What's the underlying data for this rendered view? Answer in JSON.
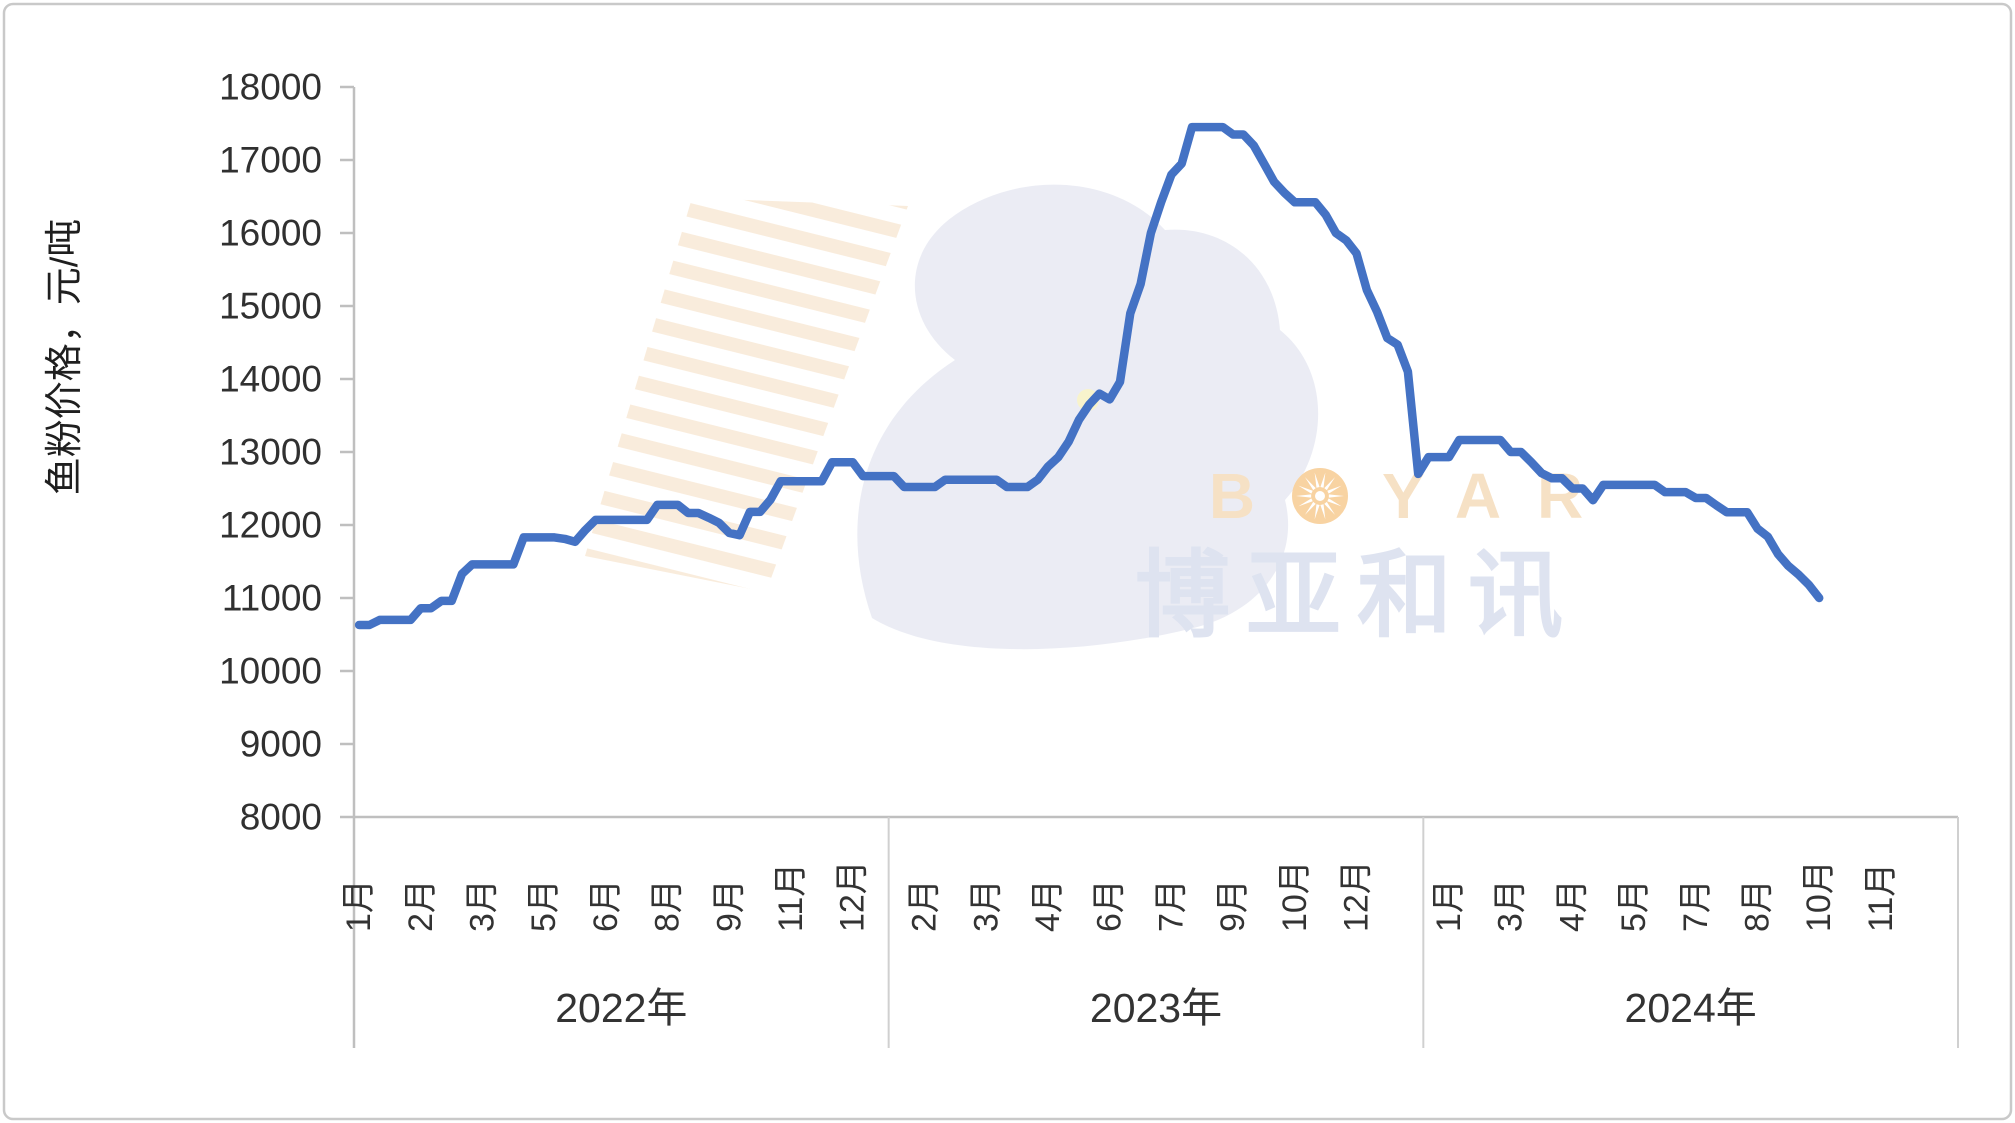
{
  "watermark": {
    "brand": "BOYAR",
    "brand_zh": "博亚和讯",
    "brand_color": "#f2cfa3",
    "brand_zh_color": "#cbd2e7",
    "stripe_color": "#f0cda1",
    "bird_color": "#c9cfe3",
    "eye_color": "#f5edae"
  },
  "chart_data": {
    "type": "line",
    "title": "",
    "ylabel": "鱼粉价格，元/吨",
    "xlabel": "",
    "ylim": [
      8000,
      18000
    ],
    "y_tick_step": 1000,
    "y_tick_labels": [
      "18000",
      "17000",
      "16000",
      "15000",
      "14000",
      "13000",
      "12000",
      "11000",
      "10000",
      "9000",
      "8000"
    ],
    "grid": "off",
    "legend": "none",
    "line_color": "#4472C4",
    "axis_color": "#bfbfbf",
    "text_color": "#303030",
    "years": [
      {
        "label": "2022年",
        "slots": 52,
        "month_ticks": [
          {
            "label": "1月",
            "week": 1
          },
          {
            "label": "2月",
            "week": 7
          },
          {
            "label": "3月",
            "week": 13
          },
          {
            "label": "5月",
            "week": 19
          },
          {
            "label": "6月",
            "week": 25
          },
          {
            "label": "8月",
            "week": 31
          },
          {
            "label": "9月",
            "week": 37
          },
          {
            "label": "11月",
            "week": 43
          },
          {
            "label": "12月",
            "week": 49
          }
        ],
        "values": [
          10630,
          10630,
          10700,
          10700,
          10700,
          10700,
          10860,
          10860,
          10960,
          10960,
          11330,
          11460,
          11460,
          11460,
          11460,
          11460,
          11830,
          11830,
          11830,
          11830,
          11810,
          11770,
          11930,
          12070,
          12070,
          12070,
          12070,
          12070,
          12070,
          12275,
          12275,
          12275,
          12165,
          12165,
          12100,
          12030,
          11890,
          11860,
          12180,
          12180,
          12345,
          12600,
          12600,
          12600,
          12600,
          12600,
          12860,
          12860,
          12860,
          12670,
          12670,
          12670
        ]
      },
      {
        "label": "2023年",
        "slots": 52,
        "month_ticks": [
          {
            "label": "2月",
            "week": 4
          },
          {
            "label": "3月",
            "week": 10
          },
          {
            "label": "4月",
            "week": 16
          },
          {
            "label": "6月",
            "week": 22
          },
          {
            "label": "7月",
            "week": 28
          },
          {
            "label": "9月",
            "week": 34
          },
          {
            "label": "10月",
            "week": 40
          },
          {
            "label": "12月",
            "week": 46
          }
        ],
        "values": [
          12670,
          12520,
          12520,
          12520,
          12520,
          12620,
          12620,
          12620,
          12620,
          12620,
          12620,
          12520,
          12520,
          12520,
          12620,
          12800,
          12930,
          13140,
          13440,
          13650,
          13800,
          13720,
          13960,
          14900,
          15300,
          16000,
          16420,
          16800,
          16950,
          17450,
          17450,
          17450,
          17450,
          17350,
          17350,
          17200,
          16950,
          16700,
          16550,
          16420,
          16420,
          16420,
          16250,
          16000,
          15900,
          15720,
          15220,
          14920,
          14560,
          14470,
          14100,
          12700
        ]
      },
      {
        "label": "2024年",
        "slots": 52,
        "month_ticks": [
          {
            "label": "1月",
            "week": 3
          },
          {
            "label": "3月",
            "week": 9
          },
          {
            "label": "4月",
            "week": 15
          },
          {
            "label": "5月",
            "week": 21
          },
          {
            "label": "7月",
            "week": 27
          },
          {
            "label": "8月",
            "week": 33
          },
          {
            "label": "10月",
            "week": 39
          },
          {
            "label": "11月",
            "week": 45
          }
        ],
        "values": [
          12930,
          12930,
          12930,
          13165,
          13165,
          13165,
          13165,
          13165,
          13000,
          13000,
          12860,
          12710,
          12640,
          12640,
          12500,
          12500,
          12340,
          12550,
          12550,
          12550,
          12550,
          12550,
          12550,
          12450,
          12450,
          12450,
          12370,
          12370,
          12270,
          12175,
          12175,
          12175,
          11950,
          11840,
          11600,
          11440,
          11320,
          11180,
          11000
        ]
      }
    ]
  }
}
